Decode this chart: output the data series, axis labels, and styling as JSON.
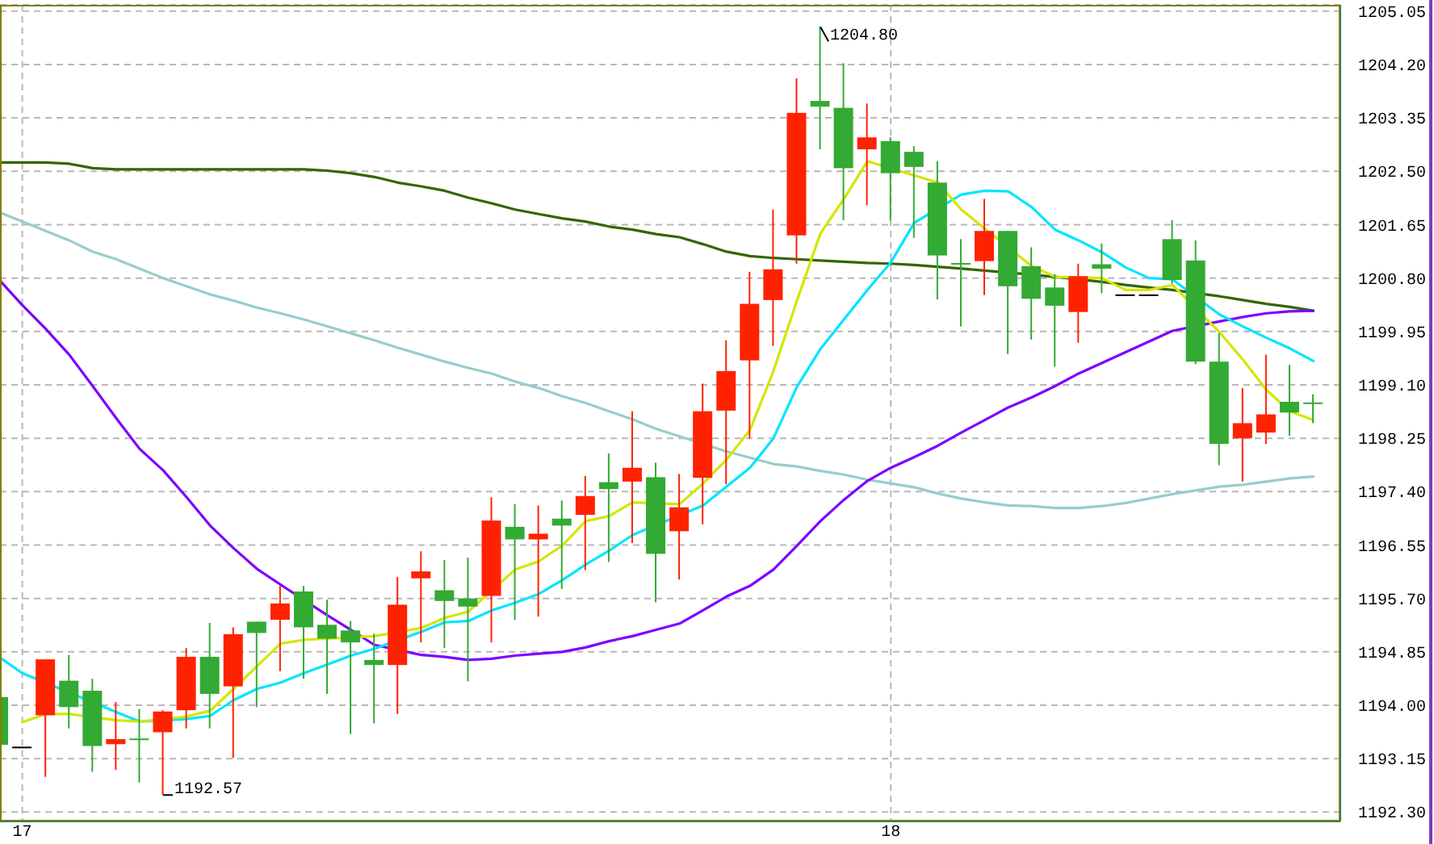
{
  "chart_data": {
    "type": "candlestick",
    "categories": [
      null,
      "17",
      null,
      null,
      null,
      null,
      null,
      null,
      null,
      null,
      null,
      null,
      null,
      null,
      null,
      null,
      null,
      null,
      null,
      null,
      null,
      null,
      null,
      null,
      null,
      null,
      null,
      null,
      null,
      null,
      null,
      null,
      null,
      null,
      null,
      null,
      null,
      null,
      "18",
      null,
      null,
      null,
      null,
      null,
      null,
      null,
      null,
      null,
      null,
      null,
      null,
      null,
      null,
      null,
      null,
      null,
      null
    ],
    "ohlc": [
      [
        1194.13,
        1194.13,
        1193.37,
        1193.37
      ],
      [
        1193.34,
        1193.34,
        1193.34,
        1193.34
      ],
      [
        1193.84,
        1194.73,
        1192.86,
        1194.73
      ],
      [
        1194.39,
        1194.8,
        1193.63,
        1193.97
      ],
      [
        1194.23,
        1194.42,
        1192.94,
        1193.35
      ],
      [
        1193.38,
        1194.05,
        1192.97,
        1193.46
      ],
      [
        1193.47,
        1193.94,
        1192.77,
        1193.45
      ],
      [
        1193.57,
        1193.92,
        1192.57,
        1193.9
      ],
      [
        1193.92,
        1194.91,
        1193.63,
        1194.77
      ],
      [
        1194.77,
        1195.31,
        1193.63,
        1194.18
      ],
      [
        1194.3,
        1195.24,
        1193.16,
        1195.13
      ],
      [
        1195.33,
        1195.33,
        1193.97,
        1195.15
      ],
      [
        1195.36,
        1195.9,
        1194.54,
        1195.62
      ],
      [
        1195.81,
        1195.9,
        1194.42,
        1195.24
      ],
      [
        1195.28,
        1195.68,
        1194.18,
        1195.06
      ],
      [
        1195.19,
        1195.34,
        1193.54,
        1195.0
      ],
      [
        1194.72,
        1195.14,
        1193.71,
        1194.64
      ],
      [
        1194.64,
        1196.04,
        1193.86,
        1195.6
      ],
      [
        1196.02,
        1196.45,
        1195.0,
        1196.13
      ],
      [
        1195.83,
        1196.31,
        1194.91,
        1195.66
      ],
      [
        1195.7,
        1196.35,
        1194.38,
        1195.57
      ],
      [
        1195.74,
        1197.31,
        1195.0,
        1196.94
      ],
      [
        1196.84,
        1197.2,
        1195.36,
        1196.64
      ],
      [
        1196.64,
        1197.18,
        1195.41,
        1196.73
      ],
      [
        1196.97,
        1197.26,
        1195.85,
        1196.86
      ],
      [
        1197.03,
        1197.65,
        1196.15,
        1197.33
      ],
      [
        1197.55,
        1198.01,
        1196.28,
        1197.44
      ],
      [
        1197.56,
        1198.68,
        1196.58,
        1197.78
      ],
      [
        1197.63,
        1197.86,
        1195.64,
        1196.41
      ],
      [
        1196.77,
        1197.68,
        1196.0,
        1197.15
      ],
      [
        1197.62,
        1199.12,
        1196.88,
        1198.68
      ],
      [
        1198.69,
        1199.81,
        1197.52,
        1199.32
      ],
      [
        1199.49,
        1200.9,
        1198.25,
        1200.39
      ],
      [
        1200.45,
        1201.89,
        1199.72,
        1200.94
      ],
      [
        1201.48,
        1203.98,
        1201.03,
        1203.43
      ],
      [
        1203.62,
        1204.8,
        1202.85,
        1203.53
      ],
      [
        1203.51,
        1204.22,
        1201.72,
        1202.55
      ],
      [
        1202.85,
        1203.58,
        1201.96,
        1203.04
      ],
      [
        1202.98,
        1203.04,
        1201.72,
        1202.47
      ],
      [
        1202.81,
        1202.9,
        1201.44,
        1202.57
      ],
      [
        1202.32,
        1202.66,
        1200.46,
        1201.16
      ],
      [
        1201.04,
        1201.42,
        1200.03,
        1201.02
      ],
      [
        1201.07,
        1202.06,
        1200.53,
        1201.55
      ],
      [
        1201.55,
        1201.55,
        1199.59,
        1200.67
      ],
      [
        1200.99,
        1201.29,
        1199.82,
        1200.47
      ],
      [
        1200.65,
        1200.86,
        1199.39,
        1200.36
      ],
      [
        1200.26,
        1201.03,
        1199.77,
        1200.83
      ],
      [
        1201.02,
        1201.35,
        1200.56,
        1200.95
      ],
      [
        1200.54,
        1200.54,
        1200.54,
        1200.54
      ],
      [
        1200.54,
        1200.54,
        1200.54,
        1200.54
      ],
      [
        1201.42,
        1201.72,
        1200.71,
        1200.77
      ],
      [
        1201.08,
        1201.4,
        1199.43,
        1199.47
      ],
      [
        1199.47,
        1199.92,
        1197.82,
        1198.16
      ],
      [
        1198.25,
        1199.05,
        1197.56,
        1198.49
      ],
      [
        1198.34,
        1199.58,
        1198.16,
        1198.63
      ],
      [
        1198.83,
        1199.42,
        1198.29,
        1198.66
      ],
      [
        1198.82,
        1198.95,
        1198.49,
        1198.82
      ]
    ],
    "colors": [
      "#33aa33",
      "#000000",
      "#ff2200",
      "#33aa33",
      "#33aa33",
      "#ff2200",
      "#33aa33",
      "#ff2200",
      "#ff2200",
      "#33aa33",
      "#ff2200",
      "#33aa33",
      "#ff2200",
      "#33aa33",
      "#33aa33",
      "#33aa33",
      "#33aa33",
      "#ff2200",
      "#ff2200",
      "#33aa33",
      "#33aa33",
      "#ff2200",
      "#33aa33",
      "#ff2200",
      "#33aa33",
      "#ff2200",
      "#33aa33",
      "#ff2200",
      "#33aa33",
      "#ff2200",
      "#ff2200",
      "#ff2200",
      "#ff2200",
      "#ff2200",
      "#ff2200",
      "#33aa33",
      "#33aa33",
      "#ff2200",
      "#33aa33",
      "#33aa33",
      "#33aa33",
      "#33aa33",
      "#ff2200",
      "#33aa33",
      "#33aa33",
      "#33aa33",
      "#ff2200",
      "#33aa33",
      "#000000",
      "#000000",
      "#33aa33",
      "#33aa33",
      "#33aa33",
      "#ff2200",
      "#ff2200",
      "#33aa33",
      "#33aa33"
    ],
    "series": [
      {
        "type": "line",
        "color": "#99cccc",
        "values": [
          1201.85,
          1201.7,
          1201.55,
          1201.4,
          1201.22,
          1201.1,
          1200.95,
          1200.8,
          1200.67,
          1200.54,
          1200.44,
          1200.33,
          1200.24,
          1200.14,
          1200.03,
          1199.92,
          1199.81,
          1199.69,
          1199.58,
          1199.47,
          1199.37,
          1199.28,
          1199.15,
          1199.05,
          1198.92,
          1198.81,
          1198.68,
          1198.55,
          1198.4,
          1198.28,
          null,
          1198.04,
          1197.94,
          1197.84,
          1197.8,
          1197.73,
          1197.67,
          1197.59,
          1197.53,
          1197.47,
          1197.37,
          1197.29,
          1197.23,
          1197.18,
          1197.17,
          1197.14,
          1197.14,
          1197.17,
          1197.22,
          1197.29,
          1197.36,
          1197.42,
          1197.48,
          1197.51,
          1197.56,
          1197.61,
          1197.64
        ]
      },
      {
        "type": "line",
        "color": "#336600",
        "values": [
          1202.64,
          1202.64,
          1202.64,
          1202.62,
          1202.55,
          1202.53,
          1202.53,
          1202.53,
          1202.53,
          1202.53,
          1202.53,
          1202.53,
          1202.53,
          1202.53,
          1202.51,
          1202.47,
          1202.41,
          1202.32,
          1202.26,
          1202.19,
          1202.08,
          1201.99,
          1201.89,
          1201.82,
          1201.75,
          1201.7,
          1201.62,
          1201.57,
          1201.5,
          1201.45,
          1201.34,
          1201.22,
          1201.15,
          1201.12,
          1201.1,
          1201.08,
          1201.06,
          1201.04,
          1201.03,
          1201.01,
          1200.98,
          1200.95,
          1200.92,
          null,
          null,
          1200.82,
          null,
          1200.74,
          1200.69,
          1200.65,
          1200.61,
          null,
          1200.51,
          1200.45,
          1200.39,
          1200.34,
          1200.28
        ]
      },
      {
        "type": "line",
        "color": "#7f00ff",
        "values": [
          1200.78,
          1200.37,
          1199.99,
          1199.58,
          1199.08,
          1198.57,
          1198.08,
          1197.74,
          1197.31,
          1196.86,
          1196.5,
          1196.17,
          1195.92,
          null,
          1195.43,
          1195.2,
          1194.96,
          null,
          1194.8,
          1194.77,
          1194.72,
          1194.74,
          1194.79,
          1194.82,
          1194.85,
          1194.92,
          1195.02,
          1195.1,
          1195.2,
          1195.3,
          1195.51,
          1195.73,
          1195.9,
          1196.16,
          1196.54,
          1196.93,
          1197.27,
          1197.57,
          1197.78,
          1197.95,
          1198.13,
          1198.34,
          1198.54,
          1198.74,
          1198.9,
          1199.08,
          1199.28,
          1199.45,
          1199.62,
          1199.79,
          1199.96,
          null,
          1200.11,
          1200.18,
          1200.24,
          1200.27,
          1200.28
        ]
      },
      {
        "type": "line",
        "color": "#00e5ff",
        "values": [
          1194.77,
          1194.51,
          null,
          null,
          null,
          1193.89,
          1193.74,
          null,
          1193.78,
          1193.83,
          1194.08,
          1194.26,
          1194.36,
          1194.51,
          1194.65,
          1194.79,
          1194.9,
          null,
          1195.17,
          1195.32,
          1195.34,
          1195.51,
          1195.63,
          1195.77,
          1195.99,
          1196.24,
          1196.46,
          1196.71,
          null,
          null,
          1197.18,
          1197.48,
          1197.78,
          1198.25,
          1199.07,
          1199.67,
          1200.14,
          1200.61,
          1201.05,
          1201.68,
          null,
          1202.13,
          1202.19,
          1202.18,
          1201.93,
          1201.57,
          1201.4,
          1201.21,
          1200.97,
          1200.8,
          1200.78,
          null,
          1200.22,
          1200.03,
          1199.85,
          1199.68,
          1199.48
        ]
      },
      {
        "type": "line",
        "color": "#d4e600",
        "values": [
          null,
          1193.73,
          1193.86,
          1193.86,
          null,
          1193.76,
          1193.74,
          null,
          1193.82,
          1193.91,
          1194.26,
          1194.62,
          1194.98,
          1195.04,
          null,
          null,
          1195.1,
          null,
          1195.23,
          1195.39,
          1195.49,
          null,
          1196.16,
          1196.29,
          1196.54,
          1196.93,
          1197.01,
          1197.23,
          null,
          1197.2,
          1197.53,
          1197.91,
          1198.38,
          1199.32,
          1200.44,
          1201.51,
          1202.06,
          1202.66,
          null,
          null,
          1202.32,
          1201.89,
          1201.59,
          null,
          1200.99,
          1200.82,
          null,
          1200.8,
          1200.61,
          1200.61,
          1200.69,
          null,
          1199.94,
          1199.5,
          1199.02,
          1198.68,
          1198.54
        ]
      }
    ],
    "ylim": [
      1192.15,
      1205.15
    ],
    "yticks": [
      {
        "value": 1192.3,
        "label": "1192.30"
      },
      1193.15,
      {
        "value": 1194,
        "label": "1194.00"
      },
      1194.85,
      {
        "value": 1195.7,
        "label": "1195.70"
      },
      1196.55,
      {
        "value": 1197.4,
        "label": "1197.40"
      },
      1198.25,
      {
        "value": 1199.1,
        "label": "1199.10"
      },
      1199.95,
      {
        "value": 1200.8,
        "label": "1200.80"
      },
      1201.65,
      {
        "value": 1202.5,
        "label": "1202.50"
      },
      1203.35,
      {
        "value": 1204.2,
        "label": "1204.20"
      },
      1205.05
    ],
    "grid": true,
    "annotations": [
      "1204.80",
      "1192.57"
    ]
  }
}
